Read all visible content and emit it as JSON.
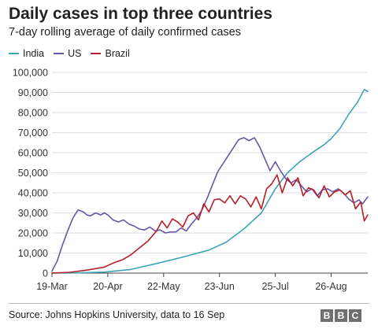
{
  "chart_data": {
    "type": "line",
    "title": "Daily cases in top three countries",
    "subtitle": "7-day rolling average of daily confirmed cases",
    "xlabel": "",
    "ylabel": "",
    "x_range": [
      "19-Mar",
      "16-Sep"
    ],
    "ylim": [
      0,
      100000
    ],
    "y_ticks": [
      0,
      10000,
      20000,
      30000,
      40000,
      50000,
      60000,
      70000,
      80000,
      90000,
      100000
    ],
    "y_tick_labels": [
      "0",
      "10,000",
      "20,000",
      "30,000",
      "40,000",
      "50,000",
      "60,000",
      "70,000",
      "80,000",
      "90,000",
      "100,000"
    ],
    "x_tick_labels": [
      "19-Mar",
      "20-Apr",
      "22-May",
      "23-Jun",
      "25-Jul",
      "26-Aug"
    ],
    "x_tick_days": [
      0,
      32,
      64,
      96,
      128,
      160
    ],
    "total_days": 181,
    "grid": "horizontal",
    "legend_position": "top-left",
    "series": [
      {
        "name": "India",
        "color": "#3ea3b7",
        "days": [
          0,
          15,
          30,
          45,
          60,
          75,
          90,
          100,
          110,
          120,
          128,
          135,
          142,
          150,
          156,
          160,
          165,
          170,
          175,
          179,
          181
        ],
        "values": [
          20,
          120,
          500,
          1800,
          4800,
          8000,
          11500,
          15500,
          22000,
          30000,
          42000,
          50000,
          55500,
          60500,
          64000,
          67000,
          72000,
          79000,
          85000,
          91500,
          90500
        ]
      },
      {
        "name": "US",
        "color": "#6a56a8",
        "days": [
          0,
          3,
          6,
          9,
          12,
          15,
          18,
          20,
          22,
          25,
          28,
          30,
          32,
          35,
          38,
          41,
          44,
          47,
          50,
          53,
          56,
          59,
          62,
          65,
          68,
          71,
          74,
          77,
          80,
          83,
          86,
          89,
          92,
          95,
          98,
          101,
          104,
          107,
          110,
          113,
          116,
          119,
          122,
          125,
          128,
          131,
          134,
          137,
          140,
          143,
          146,
          149,
          152,
          155,
          158,
          161,
          164,
          167,
          170,
          173,
          176,
          178,
          181
        ],
        "values": [
          1000,
          6000,
          14000,
          21000,
          27500,
          31500,
          30500,
          29000,
          28500,
          30000,
          29000,
          30000,
          29000,
          26500,
          25500,
          26500,
          24500,
          23500,
          22000,
          21500,
          23000,
          21000,
          21500,
          20000,
          20500,
          20500,
          22500,
          21000,
          24500,
          27500,
          31500,
          37500,
          44000,
          50500,
          54500,
          58500,
          62500,
          66500,
          67500,
          66000,
          67500,
          63000,
          57000,
          51000,
          55500,
          51000,
          47000,
          45000,
          46500,
          43500,
          40500,
          42000,
          38500,
          41500,
          42000,
          40500,
          42000,
          40000,
          37000,
          35000,
          36500,
          34500,
          38000
        ]
      },
      {
        "name": "Brazil",
        "color": "#b31f2b",
        "days": [
          0,
          10,
          20,
          30,
          35,
          40,
          45,
          50,
          55,
          60,
          63,
          66,
          69,
          72,
          75,
          78,
          81,
          84,
          87,
          90,
          93,
          96,
          99,
          102,
          105,
          108,
          111,
          114,
          117,
          120,
          123,
          126,
          129,
          132,
          135,
          138,
          141,
          144,
          147,
          150,
          153,
          156,
          159,
          162,
          165,
          168,
          171,
          174,
          177,
          179,
          181
        ],
        "values": [
          50,
          400,
          1500,
          3000,
          5000,
          6500,
          9000,
          12500,
          16000,
          21000,
          26000,
          22500,
          27000,
          25500,
          23000,
          28500,
          30000,
          26500,
          34500,
          30500,
          36500,
          37000,
          35000,
          38500,
          34500,
          38500,
          37000,
          33000,
          38000,
          32000,
          42000,
          44500,
          49000,
          40000,
          47500,
          43500,
          47500,
          38500,
          42500,
          41500,
          37500,
          43500,
          38000,
          40500,
          41500,
          39000,
          41000,
          32000,
          35500,
          26000,
          29000
        ]
      }
    ]
  },
  "footer": {
    "source": "Source: Johns Hopkins University, data to 16 Sep",
    "logo": [
      "B",
      "B",
      "C"
    ]
  }
}
